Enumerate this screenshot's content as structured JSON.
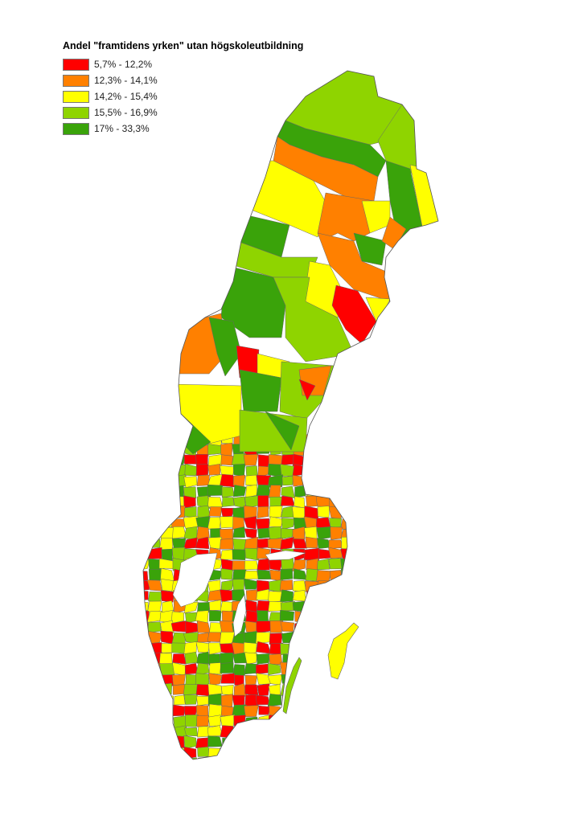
{
  "legend": {
    "title": "Andel \"framtidens yrken\" utan högskoleutbildning",
    "classes": [
      {
        "label": "5,7% - 12,2%",
        "color": "#ff0000"
      },
      {
        "label": "12,3% - 14,1%",
        "color": "#ff8000"
      },
      {
        "label": "14,2% - 15,4%",
        "color": "#ffff00"
      },
      {
        "label": "15,5% - 16,9%",
        "color": "#8fd400"
      },
      {
        "label": "17% - 33,3%",
        "color": "#3aa30a"
      }
    ]
  }
}
